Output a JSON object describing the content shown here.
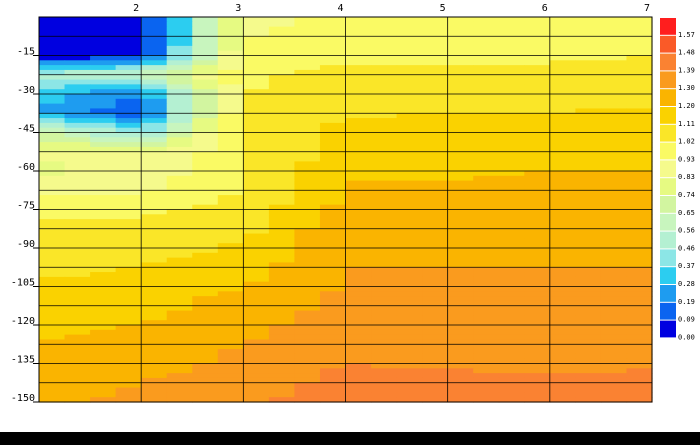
{
  "chart_data": {
    "type": "contour",
    "x": [
      1,
      2,
      3,
      4,
      5,
      6,
      7
    ],
    "y": [
      0,
      -7.5,
      -15,
      -22.5,
      -30,
      -37.5,
      -45,
      -52.5,
      -60,
      -67.5,
      -75,
      -82.5,
      -90,
      -97.5,
      -105,
      -112.5,
      -120,
      -127.5,
      -135,
      -142.5,
      -150
    ],
    "z": [
      [
        0,
        0,
        0.9,
        0.95,
        0.95,
        0.96,
        0.97
      ],
      [
        0,
        0,
        0.92,
        0.97,
        0.97,
        0.98,
        0.99
      ],
      [
        0,
        0.05,
        0.95,
        1.0,
        1.0,
        1.0,
        1.02
      ],
      [
        0.5,
        0.6,
        1.0,
        1.05,
        1.05,
        1.05,
        1.06
      ],
      [
        0.3,
        0.2,
        1.02,
        1.08,
        1.08,
        1.08,
        1.09
      ],
      [
        0.3,
        0.1,
        1.05,
        1.1,
        1.11,
        1.11,
        1.12
      ],
      [
        0.7,
        0.4,
        1.08,
        1.13,
        1.14,
        1.14,
        1.15
      ],
      [
        0.85,
        0.85,
        1.0,
        1.16,
        1.17,
        1.17,
        1.18
      ],
      [
        0.8,
        0.88,
        1.0,
        1.19,
        1.19,
        1.2,
        1.2
      ],
      [
        0.9,
        0.92,
        1.02,
        1.21,
        1.21,
        1.22,
        1.22
      ],
      [
        1.0,
        1.0,
        1.05,
        1.23,
        1.23,
        1.23,
        1.24
      ],
      [
        1.04,
        1.05,
        1.08,
        1.27,
        1.25,
        1.25,
        1.25
      ],
      [
        1.07,
        1.08,
        1.12,
        1.29,
        1.28,
        1.29,
        1.28
      ],
      [
        1.09,
        1.11,
        1.15,
        1.3,
        1.3,
        1.3,
        1.3
      ],
      [
        1.12,
        1.13,
        1.2,
        1.31,
        1.31,
        1.31,
        1.31
      ],
      [
        1.15,
        1.16,
        1.25,
        1.32,
        1.32,
        1.32,
        1.32
      ],
      [
        1.18,
        1.2,
        1.28,
        1.33,
        1.33,
        1.33,
        1.33
      ],
      [
        1.2,
        1.22,
        1.3,
        1.36,
        1.36,
        1.35,
        1.35
      ],
      [
        1.22,
        1.25,
        1.33,
        1.39,
        1.38,
        1.37,
        1.38
      ],
      [
        1.25,
        1.3,
        1.36,
        1.41,
        1.41,
        1.4,
        1.41
      ],
      [
        1.28,
        1.32,
        1.38,
        1.42,
        1.42,
        1.42,
        1.43
      ]
    ],
    "xlim": [
      1,
      7
    ],
    "ylim": [
      -150,
      0
    ],
    "xticks": [
      2,
      3,
      4,
      5,
      6,
      7
    ],
    "yticks": [
      -15,
      -30,
      -45,
      -60,
      -75,
      -90,
      -105,
      -120,
      -135,
      -150
    ],
    "levels": [
      {
        "value": 0,
        "label": "0.00"
      },
      {
        "value": 0.09,
        "label": "0.09"
      },
      0.19,
      0.28,
      0.37,
      0.46,
      0.56,
      0.65,
      0.74,
      0.83,
      0.93,
      1.02,
      1.11,
      {
        "value": 1.2,
        "label": "1.20"
      },
      {
        "value": 1.3,
        "label": "1.30"
      },
      1.39,
      1.48,
      1.57
    ],
    "colors": [
      "#0000e0",
      "#0a64f0",
      "#1e9cf0",
      "#2ccdf0",
      "#8ce6e6",
      "#b4f0d2",
      "#c8f5be",
      "#d2f5a0",
      "#e6fa82",
      "#f5fa8c",
      "#fafa64",
      "#fae628",
      "#fad200",
      "#fab400",
      "#fa9b1e",
      "#fa8232",
      "#fa5a28",
      "#ff1e1e"
    ]
  }
}
